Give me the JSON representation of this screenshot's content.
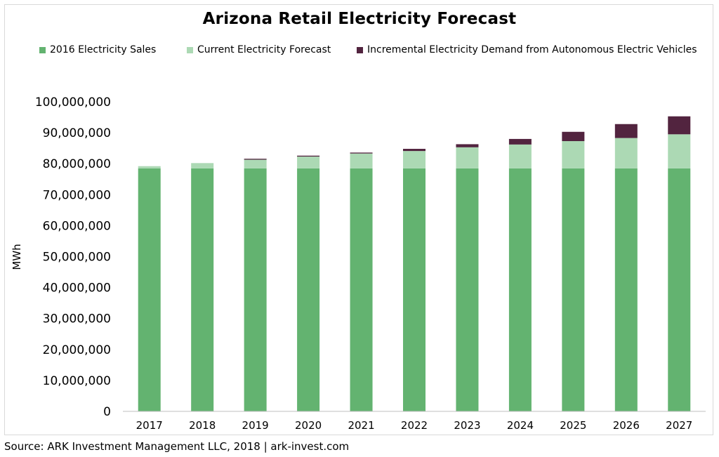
{
  "chart_data": {
    "type": "bar",
    "stacked": true,
    "title": "Arizona Retail Electricity Forecast",
    "xlabel": "",
    "ylabel": "MWh",
    "ylim": [
      0,
      100000000
    ],
    "yticks": [
      0,
      10000000,
      20000000,
      30000000,
      40000000,
      50000000,
      60000000,
      70000000,
      80000000,
      90000000,
      100000000
    ],
    "ytick_labels": [
      "0",
      "10,000,000",
      "20,000,000",
      "30,000,000",
      "40,000,000",
      "50,000,000",
      "60,000,000",
      "70,000,000",
      "80,000,000",
      "90,000,000",
      "100,000,000"
    ],
    "grid": false,
    "legend_position": "top",
    "categories": [
      "2017",
      "2018",
      "2019",
      "2020",
      "2021",
      "2022",
      "2023",
      "2024",
      "2025",
      "2026",
      "2027"
    ],
    "series": [
      {
        "name": "2016 Electricity Sales",
        "color": "#63b370",
        "values": [
          78500000,
          78500000,
          78500000,
          78500000,
          78500000,
          78500000,
          78500000,
          78500000,
          78500000,
          78500000,
          78500000
        ]
      },
      {
        "name": "Current Electricity Forecast",
        "color": "#acd9b4",
        "values": [
          700000,
          1700000,
          2800000,
          3800000,
          4800000,
          5600000,
          6800000,
          7700000,
          8800000,
          9800000,
          11000000
        ]
      },
      {
        "name": "Incremental Electricity Demand from Autonomous Electric Vehicles",
        "color": "#52243f",
        "values": [
          0,
          0,
          300000,
          300000,
          300000,
          700000,
          1000000,
          1800000,
          3000000,
          4500000,
          5800000
        ]
      }
    ]
  },
  "footer": {
    "source": "Source: ARK Investment Management LLC, 2018 | ark-invest.com"
  }
}
